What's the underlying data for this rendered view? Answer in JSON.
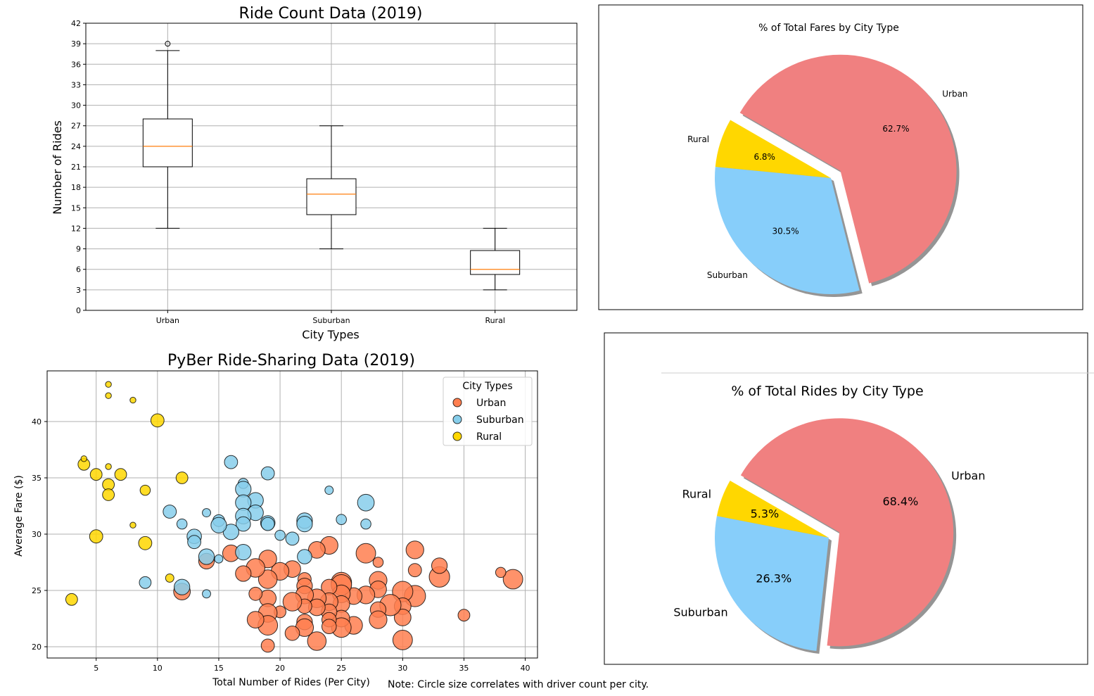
{
  "chart_data": [
    {
      "type": "box",
      "title": "Ride Count Data (2019)",
      "xlabel": "City Types",
      "ylabel": "Number of Rides",
      "ylim": [
        0,
        42
      ],
      "yticks": [
        0,
        3,
        6,
        9,
        12,
        15,
        18,
        21,
        24,
        27,
        30,
        33,
        36,
        39,
        42
      ],
      "grid": true,
      "categories": [
        "Urban",
        "Suburban",
        "Rural"
      ],
      "boxes": [
        {
          "whisker_low": 12,
          "q1": 21,
          "median": 24,
          "q3": 28,
          "whisker_high": 38,
          "outliers": [
            39
          ]
        },
        {
          "whisker_low": 9,
          "q1": 14,
          "median": 17,
          "q3": 19.25,
          "whisker_high": 27,
          "outliers": []
        },
        {
          "whisker_low": 3,
          "q1": 5.25,
          "median": 6,
          "q3": 8.75,
          "whisker_high": 12,
          "outliers": []
        }
      ],
      "colors": {
        "box": "#000000",
        "median": "#ff7f0e",
        "grid": "#b0b0b0"
      }
    },
    {
      "type": "pie",
      "title": "% of Total Fares by City Type",
      "labels": [
        "Rural",
        "Suburban",
        "Urban"
      ],
      "values": [
        6.8,
        30.5,
        62.7
      ],
      "value_labels": [
        "6.8%",
        "30.5%",
        "62.7%"
      ],
      "exploded": [
        "Urban"
      ],
      "colors": [
        "#ffd700",
        "#87cefa",
        "#f08080"
      ],
      "shadow": true
    },
    {
      "type": "scatter",
      "title": "PyBer Ride-Sharing Data (2019)",
      "xlabel": "Total Number of Rides (Per City)",
      "ylabel": "Average Fare ($)",
      "xlim": [
        1,
        41
      ],
      "ylim": [
        19,
        44.5
      ],
      "xticks": [
        5,
        10,
        15,
        20,
        25,
        30,
        35,
        40
      ],
      "yticks": [
        20,
        25,
        30,
        35,
        40
      ],
      "grid": true,
      "legend": {
        "title": "City Types",
        "placement": "upper-right"
      },
      "note": "Note: Circle size correlates with driver count per city.",
      "series": [
        {
          "name": "Urban",
          "color": "#ff7f50",
          "points": [
            [
              39,
              26.0,
              11
            ],
            [
              38,
              26.6,
              3
            ],
            [
              35,
              22.8,
              4
            ],
            [
              33,
              26.2,
              12
            ],
            [
              33,
              27.2,
              7
            ],
            [
              31,
              28.6,
              9
            ],
            [
              31,
              26.8,
              5
            ],
            [
              31,
              24.5,
              13
            ],
            [
              30,
              24.9,
              12
            ],
            [
              30,
              23.6,
              8
            ],
            [
              30,
              22.6,
              8
            ],
            [
              30,
              20.6,
              11
            ],
            [
              29,
              23.7,
              13
            ],
            [
              28,
              25.9,
              9
            ],
            [
              28,
              25.1,
              8
            ],
            [
              28,
              23.3,
              7
            ],
            [
              28,
              22.4,
              9
            ],
            [
              28,
              27.5,
              3
            ],
            [
              27,
              28.3,
              11
            ],
            [
              27,
              24.6,
              9
            ],
            [
              26,
              24.5,
              8
            ],
            [
              26,
              21.9,
              9
            ],
            [
              25,
              25.7,
              12
            ],
            [
              25,
              25.5,
              12
            ],
            [
              25,
              24.7,
              9
            ],
            [
              25,
              23.8,
              8
            ],
            [
              25,
              22.5,
              8
            ],
            [
              25,
              21.7,
              11
            ],
            [
              24,
              29.0,
              9
            ],
            [
              24,
              25.3,
              7
            ],
            [
              24,
              24.0,
              9
            ],
            [
              24,
              23.1,
              7
            ],
            [
              24,
              22.4,
              6
            ],
            [
              24,
              21.8,
              6
            ],
            [
              23,
              28.6,
              8
            ],
            [
              23,
              24.3,
              10
            ],
            [
              23,
              23.5,
              8
            ],
            [
              23,
              20.5,
              10
            ],
            [
              22,
              26.0,
              5
            ],
            [
              22,
              25.4,
              7
            ],
            [
              22,
              24.6,
              9
            ],
            [
              22,
              23.6,
              6
            ],
            [
              22,
              22.2,
              7
            ],
            [
              22,
              21.7,
              9
            ],
            [
              21,
              26.9,
              8
            ],
            [
              21,
              24.0,
              10
            ],
            [
              21,
              21.2,
              6
            ],
            [
              20,
              26.7,
              9
            ],
            [
              20,
              23.1,
              4
            ],
            [
              19,
              27.8,
              9
            ],
            [
              19,
              26.0,
              10
            ],
            [
              19,
              24.3,
              8
            ],
            [
              19,
              23.0,
              10
            ],
            [
              19,
              21.9,
              11
            ],
            [
              19,
              20.1,
              5
            ],
            [
              18,
              27.0,
              10
            ],
            [
              18,
              24.7,
              5
            ],
            [
              18,
              22.4,
              8
            ],
            [
              17,
              26.5,
              7
            ],
            [
              16,
              28.3,
              8
            ],
            [
              14,
              27.6,
              7
            ],
            [
              12,
              24.9,
              8
            ]
          ]
        },
        {
          "name": "Suburban",
          "color": "#87ceeb",
          "points": [
            [
              27,
              32.8,
              8
            ],
            [
              27,
              30.9,
              3
            ],
            [
              25,
              31.3,
              3
            ],
            [
              24,
              33.9,
              2
            ],
            [
              22,
              31.2,
              7
            ],
            [
              22,
              30.9,
              7
            ],
            [
              22,
              28.0,
              6
            ],
            [
              21,
              29.6,
              5
            ],
            [
              20,
              29.9,
              3
            ],
            [
              19,
              35.4,
              5
            ],
            [
              19,
              31.0,
              6
            ],
            [
              19,
              30.9,
              5
            ],
            [
              18,
              33.0,
              7
            ],
            [
              18,
              31.9,
              7
            ],
            [
              17,
              34.5,
              3
            ],
            [
              17,
              34.0,
              7
            ],
            [
              17,
              32.8,
              7
            ],
            [
              17,
              31.6,
              7
            ],
            [
              17,
              30.9,
              6
            ],
            [
              17,
              28.4,
              7
            ],
            [
              16,
              36.4,
              5
            ],
            [
              16,
              30.2,
              7
            ],
            [
              15,
              31.2,
              4
            ],
            [
              15,
              30.8,
              7
            ],
            [
              15,
              27.8,
              2
            ],
            [
              14,
              31.9,
              2
            ],
            [
              14,
              28.0,
              7
            ],
            [
              14,
              24.7,
              2
            ],
            [
              13,
              29.8,
              6
            ],
            [
              13,
              29.3,
              5
            ],
            [
              12,
              30.9,
              3
            ],
            [
              12,
              25.3,
              7
            ],
            [
              11,
              32.0,
              5
            ],
            [
              9,
              25.7,
              4
            ]
          ]
        },
        {
          "name": "Rural",
          "color": "#ffd700",
          "points": [
            [
              3,
              24.2,
              4
            ],
            [
              4,
              36.2,
              4
            ],
            [
              4,
              36.7,
              1
            ],
            [
              5,
              35.3,
              4
            ],
            [
              5,
              29.8,
              5
            ],
            [
              6,
              43.3,
              1
            ],
            [
              6,
              42.3,
              1
            ],
            [
              6,
              36.0,
              1
            ],
            [
              6,
              34.4,
              4
            ],
            [
              6,
              33.5,
              4
            ],
            [
              7,
              35.3,
              4
            ],
            [
              8,
              41.9,
              1
            ],
            [
              8,
              30.8,
              1
            ],
            [
              9,
              33.9,
              3
            ],
            [
              9,
              29.2,
              5
            ],
            [
              10,
              40.1,
              5
            ],
            [
              11,
              26.1,
              2
            ],
            [
              12,
              35.0,
              4
            ]
          ]
        }
      ]
    },
    {
      "type": "pie",
      "title": "% of Total Rides by City Type",
      "labels": [
        "Rural",
        "Suburban",
        "Urban"
      ],
      "values": [
        5.3,
        26.3,
        68.4
      ],
      "value_labels": [
        "5.3%",
        "26.3%",
        "68.4%"
      ],
      "exploded": [
        "Urban"
      ],
      "colors": [
        "#ffd700",
        "#87cefa",
        "#f08080"
      ],
      "shadow": true
    }
  ]
}
